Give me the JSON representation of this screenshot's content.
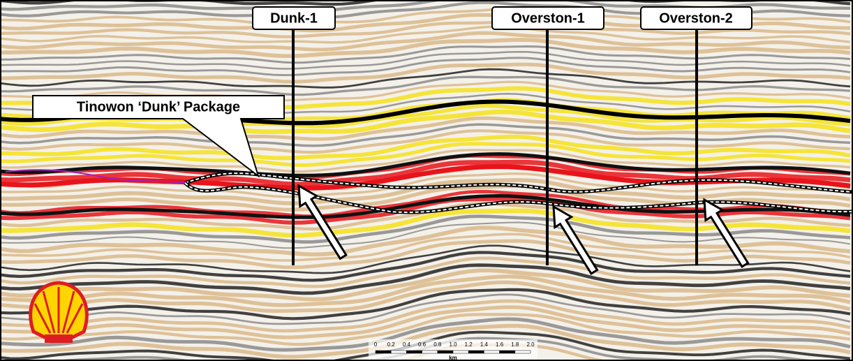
{
  "wells": [
    "Dunk-1",
    "Overston-1",
    "Overston-2"
  ],
  "package_label": "Tinowon ‘Dunk’ Package",
  "scale_bar": {
    "ticks": [
      "0",
      "0.2",
      "0.4",
      "0.6",
      "0.8",
      "1.0",
      "1.2",
      "1.4",
      "1.6",
      "1.8",
      "2.0"
    ],
    "unit": "km"
  }
}
